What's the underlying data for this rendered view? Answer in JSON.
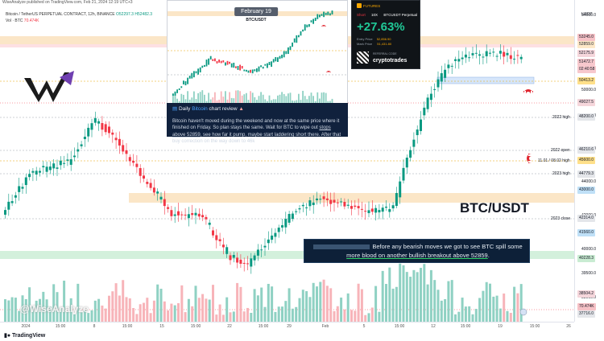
{
  "topbar": {
    "publisher_line": "WiseAnalyze published on TradingView.com, Feb 21, 2024 12:19 UTC+3"
  },
  "legend": {
    "symbol": "Bitcoin / TetherUS PERPETUAL CONTRACT, 12h, BINANCE",
    "open": "O52297.3",
    "high": "H52482.3",
    "vol_label": "Vol · BTC",
    "vol_value": "70.474K"
  },
  "price_axis": {
    "top_label": "USDT",
    "ticks": [
      "54000.0",
      "50000.0",
      "48000.0",
      "46000.0",
      "44000.0",
      "42000.0",
      "40000.0",
      "39500.0",
      "38000.0"
    ],
    "labels": [
      {
        "text": "53245.0",
        "bg": "#f6c1c6"
      },
      {
        "text": "52859.0",
        "bg": "#fde8c8"
      },
      {
        "text": "52175.9",
        "bg": "#f5d6db"
      },
      {
        "text": "51472.7",
        "bg": "#f7c8cd"
      },
      {
        "text": "02:40:58",
        "bg": "#f7c8cd"
      },
      {
        "text": "50413.2",
        "bg": "#ffe08a"
      },
      {
        "text": "49027.5",
        "bg": "#f5d6db"
      },
      {
        "text": "48200.0",
        "bg": "#e4e6ea"
      },
      {
        "text": "46210.6",
        "bg": "#e4e6ea"
      },
      {
        "text": "45600.0",
        "bg": "#ffe08a"
      },
      {
        "text": "44779.3",
        "bg": "#e4e6ea"
      },
      {
        "text": "43000.0",
        "bg": "#bfe0f7"
      },
      {
        "text": "42314.0",
        "bg": "#e4e6ea"
      },
      {
        "text": "41560.0",
        "bg": "#bfe0f7"
      },
      {
        "text": "40228.3",
        "bg": "#c9ecd2"
      },
      {
        "text": "38504.2",
        "bg": "#f5d6db"
      },
      {
        "text": "70.474K",
        "bg": "#f6c1c6"
      },
      {
        "text": "37716.0",
        "bg": "#e4e6ea"
      }
    ]
  },
  "levels": {
    "high_2022": "2022 high",
    "open_2022": "2022 open",
    "date_level": "11.01 / 08.02 high",
    "high_2023": "2023 high",
    "close_2023": "2023 close"
  },
  "time_axis": [
    "2024",
    "15:00",
    "8",
    "15:00",
    "15",
    "15:00",
    "22",
    "15:00",
    "29",
    "Feb",
    "5",
    "15:00",
    "12",
    "15:00",
    "19",
    "15:00",
    "26"
  ],
  "footer": {
    "brand": "TradingView"
  },
  "inset": {
    "date": "February 19",
    "symbol": "BTC/USDT"
  },
  "review": {
    "heading_prefix": "Daily ",
    "heading_highlight": "Bitcoin",
    "heading_suffix": " chart review",
    "body_1": "Bitcoin haven't moved during the weekend and now at the same price where it finished on Friday. So plan stays the same. Wait for BTC to wipe out ",
    "body_link": "stops above 52859",
    "body_2": ", see how far it pump, maybe start laddering short there. After that buy correction on the way down to 46k"
  },
  "bybit": {
    "brand": "FUTURES",
    "side": "Short",
    "leverage": "10X",
    "pair": "BTCUSDT Perpetual",
    "pnl": "+27.63%",
    "entry_label": "Entry Price",
    "entry_value": "52,856.90",
    "mark_label": "Mark Price",
    "mark_value": "51,431.80",
    "ref_label": "REFERRAL CODE",
    "ref_code": "cryptotrades"
  },
  "callout": {
    "text_1": "Before any bearish moves we got to see BTC spill some ",
    "text_link": "more blood on another bullish breakout above 52859",
    "text_2": "."
  },
  "symbol_big": "BTC/USDT",
  "watermark": "@WiseAnalyze",
  "colors": {
    "up": "#089981",
    "down": "#f23645",
    "vol_up": "#8fd1c3",
    "vol_down": "#f7b4b9"
  }
}
